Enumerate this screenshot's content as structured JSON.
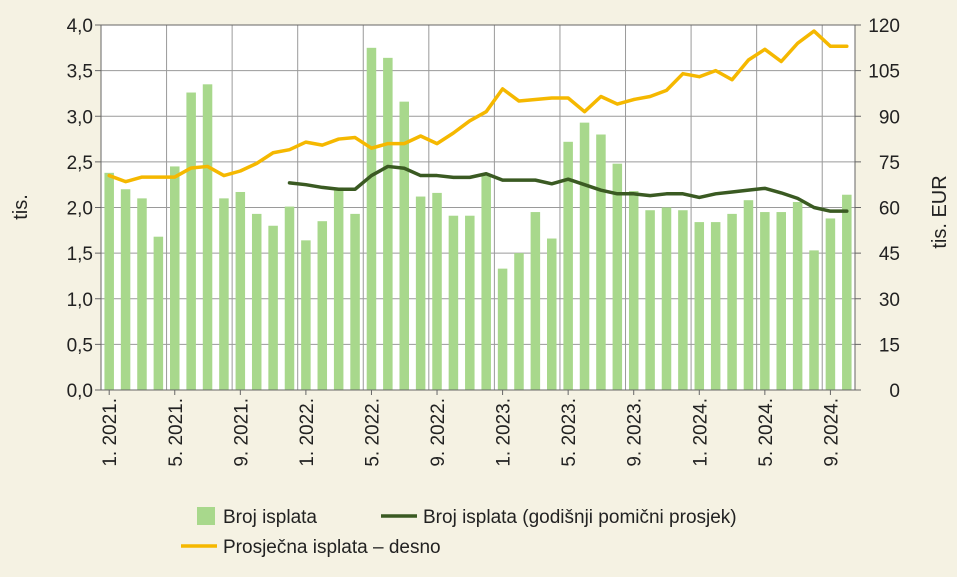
{
  "chart_data": {
    "type": "bar+line",
    "ylabel_left": "tis.",
    "ylabel_right": "tis. EUR",
    "ylim_left": [
      0,
      4.0
    ],
    "ylim_right": [
      0,
      120
    ],
    "yticks_left": [
      "0,0",
      "0,5",
      "1,0",
      "1,5",
      "2,0",
      "2,5",
      "3,0",
      "3,5",
      "4,0"
    ],
    "yticks_right": [
      "0",
      "15",
      "30",
      "45",
      "60",
      "75",
      "90",
      "105",
      "120"
    ],
    "xtick_labels": [
      "1. 2021.",
      "5. 2021.",
      "9. 2021.",
      "1. 2022.",
      "5. 2022.",
      "9. 2022.",
      "1. 2023.",
      "5. 2023.",
      "9. 2023.",
      "1. 2024.",
      "5. 2024.",
      "9. 2024."
    ],
    "xtick_index": [
      0,
      4,
      8,
      12,
      16,
      20,
      24,
      28,
      32,
      36,
      40,
      44
    ],
    "months_count": 46,
    "series": [
      {
        "name": "Broj isplata",
        "type": "bar",
        "axis": "left",
        "color": "#a8d88c",
        "values": [
          2.38,
          2.2,
          2.1,
          1.68,
          2.45,
          3.26,
          3.35,
          2.1,
          2.17,
          1.93,
          1.8,
          2.01,
          1.64,
          1.85,
          2.22,
          1.93,
          3.75,
          3.64,
          3.16,
          2.12,
          2.16,
          1.91,
          1.91,
          2.35,
          1.33,
          1.5,
          1.95,
          1.66,
          2.72,
          2.93,
          2.8,
          2.48,
          2.18,
          1.97,
          2.0,
          1.97,
          1.84,
          1.84,
          1.93,
          2.08,
          1.95,
          1.95,
          2.06,
          1.53,
          1.88,
          2.14
        ]
      },
      {
        "name": "Broj isplata (godišnji pomični prosjek)",
        "type": "line",
        "axis": "left",
        "color": "#3a5a22",
        "values": [
          null,
          null,
          null,
          null,
          null,
          null,
          null,
          null,
          null,
          null,
          null,
          2.27,
          2.25,
          2.22,
          2.2,
          2.2,
          2.35,
          2.45,
          2.43,
          2.35,
          2.35,
          2.33,
          2.33,
          2.37,
          2.3,
          2.3,
          2.3,
          2.26,
          2.31,
          2.25,
          2.19,
          2.15,
          2.15,
          2.13,
          2.15,
          2.15,
          2.11,
          2.15,
          2.17,
          2.19,
          2.21,
          2.16,
          2.1,
          2.0,
          1.96,
          1.96
        ]
      },
      {
        "name": "Prosječna isplata – desno",
        "type": "line",
        "axis": "right",
        "color": "#f5b800",
        "values": [
          70.5,
          68.5,
          70,
          70,
          70,
          73,
          73.5,
          70.5,
          72,
          74.5,
          78,
          79,
          81.5,
          80.5,
          82.5,
          83,
          79.5,
          81,
          81,
          83.5,
          81,
          84.5,
          88.5,
          91.5,
          99,
          95,
          95.5,
          96,
          96,
          91.5,
          96.5,
          94,
          95.5,
          96.5,
          98.5,
          104,
          103,
          105,
          102,
          108.5,
          112,
          108,
          114,
          118,
          113,
          113
        ]
      }
    ],
    "legend": {
      "placement": "bottom",
      "items": [
        "Broj isplata",
        "Broj isplata (godišnji pomični prosjek)",
        "Prosječna isplata – desno"
      ]
    }
  }
}
